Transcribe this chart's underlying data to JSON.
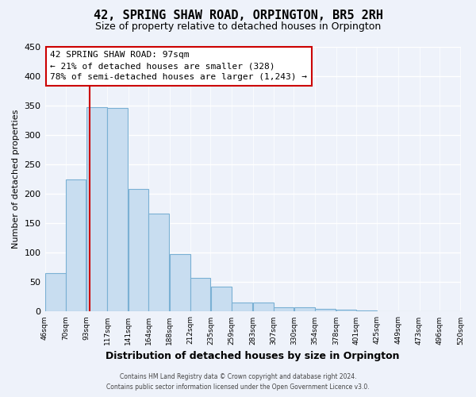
{
  "title": "42, SPRING SHAW ROAD, ORPINGTON, BR5 2RH",
  "subtitle": "Size of property relative to detached houses in Orpington",
  "xlabel": "Distribution of detached houses by size in Orpington",
  "ylabel": "Number of detached properties",
  "bar_edges": [
    46,
    70,
    93,
    117,
    141,
    164,
    188,
    212,
    235,
    259,
    283,
    307,
    330,
    354,
    378,
    401,
    425,
    449,
    473,
    496,
    520
  ],
  "bar_heights": [
    65,
    224,
    347,
    346,
    209,
    167,
    98,
    57,
    43,
    16,
    15,
    8,
    7,
    4,
    3,
    2,
    1,
    0,
    0,
    1
  ],
  "bar_color": "#c8ddf0",
  "bar_edge_color": "#7ab0d4",
  "property_line_x": 97,
  "ylim": [
    0,
    450
  ],
  "xlim": [
    46,
    520
  ],
  "annotation_text_line1": "42 SPRING SHAW ROAD: 97sqm",
  "annotation_text_line2": "← 21% of detached houses are smaller (328)",
  "annotation_text_line3": "78% of semi-detached houses are larger (1,243) →",
  "annotation_box_color": "#ffffff",
  "annotation_box_edge_color": "#cc0000",
  "property_line_color": "#cc0000",
  "tick_labels": [
    "46sqm",
    "70sqm",
    "93sqm",
    "117sqm",
    "141sqm",
    "164sqm",
    "188sqm",
    "212sqm",
    "235sqm",
    "259sqm",
    "283sqm",
    "307sqm",
    "330sqm",
    "354sqm",
    "378sqm",
    "401sqm",
    "425sqm",
    "449sqm",
    "473sqm",
    "496sqm",
    "520sqm"
  ],
  "yticks": [
    0,
    50,
    100,
    150,
    200,
    250,
    300,
    350,
    400,
    450
  ],
  "footer_line1": "Contains HM Land Registry data © Crown copyright and database right 2024.",
  "footer_line2": "Contains public sector information licensed under the Open Government Licence v3.0.",
  "background_color": "#eef2fa",
  "grid_color": "#ffffff",
  "title_fontsize": 11,
  "subtitle_fontsize": 9,
  "ylabel_fontsize": 8,
  "xlabel_fontsize": 9
}
